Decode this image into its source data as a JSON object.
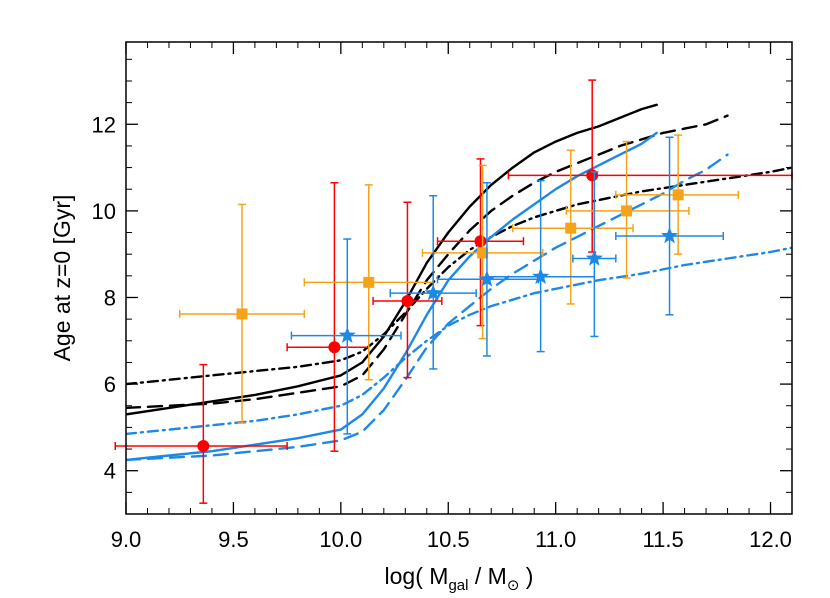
{
  "chart_data": {
    "type": "scatter",
    "xlabel_parts": {
      "pre": "log( M",
      "sub1": "gal",
      "mid": " / M",
      "sub2": "⊙",
      "post": " )"
    },
    "ylabel": "Age at z=0  [Gyr]",
    "xlim": [
      9.0,
      12.1
    ],
    "ylim": [
      3.0,
      13.9
    ],
    "x_ticks": [
      9.0,
      9.5,
      10.0,
      10.5,
      11.0,
      11.5,
      12.0
    ],
    "x_tick_labels": [
      "9.0",
      "9.5",
      "10.0",
      "10.5",
      "11.0",
      "11.5",
      "12.0"
    ],
    "y_ticks": [
      4,
      6,
      8,
      10,
      12
    ],
    "y_tick_labels": [
      "4",
      "6",
      "8",
      "10",
      "12"
    ],
    "grid": false,
    "curves": [
      {
        "color": "#000000",
        "dash": "solid",
        "x": [
          9.0,
          9.2,
          9.4,
          9.6,
          9.8,
          10.0,
          10.1,
          10.2,
          10.3,
          10.4,
          10.5,
          10.6,
          10.7,
          10.8,
          10.9,
          11.0,
          11.1,
          11.2,
          11.3,
          11.4,
          11.47
        ],
        "y": [
          5.3,
          5.45,
          5.6,
          5.75,
          5.95,
          6.2,
          6.5,
          7.1,
          7.9,
          8.8,
          9.5,
          10.1,
          10.6,
          11.0,
          11.35,
          11.6,
          11.8,
          11.95,
          12.15,
          12.35,
          12.45
        ]
      },
      {
        "color": "#000000",
        "dash": "long-dash",
        "x": [
          9.0,
          9.2,
          9.4,
          9.6,
          9.8,
          10.0,
          10.1,
          10.2,
          10.3,
          10.4,
          10.5,
          10.6,
          10.7,
          10.8,
          10.9,
          11.0,
          11.1,
          11.2,
          11.3,
          11.4,
          11.5,
          11.6,
          11.7,
          11.8
        ],
        "y": [
          5.45,
          5.5,
          5.55,
          5.65,
          5.8,
          5.95,
          6.2,
          6.8,
          7.6,
          8.4,
          9.0,
          9.55,
          10.0,
          10.35,
          10.65,
          10.9,
          11.1,
          11.3,
          11.5,
          11.65,
          11.8,
          11.9,
          12.0,
          12.2
        ]
      },
      {
        "color": "#000000",
        "dash": "dash-dot",
        "x": [
          9.0,
          9.2,
          9.4,
          9.6,
          9.8,
          10.0,
          10.1,
          10.2,
          10.3,
          10.4,
          10.5,
          10.6,
          10.7,
          10.8,
          10.9,
          11.0,
          11.1,
          11.2,
          11.4,
          11.6,
          11.8,
          12.0,
          12.1
        ],
        "y": [
          6.0,
          6.1,
          6.2,
          6.3,
          6.4,
          6.55,
          6.75,
          7.15,
          7.65,
          8.2,
          8.7,
          9.1,
          9.4,
          9.65,
          9.85,
          10.0,
          10.15,
          10.25,
          10.45,
          10.6,
          10.75,
          10.9,
          11.0
        ]
      },
      {
        "color": "#1e88e5",
        "dash": "solid",
        "x": [
          9.0,
          9.2,
          9.4,
          9.6,
          9.8,
          10.0,
          10.1,
          10.2,
          10.3,
          10.4,
          10.5,
          10.6,
          10.7,
          10.8,
          10.9,
          11.0,
          11.1,
          11.2,
          11.3,
          11.4,
          11.47
        ],
        "y": [
          4.25,
          4.35,
          4.45,
          4.6,
          4.75,
          4.95,
          5.3,
          5.9,
          6.7,
          7.6,
          8.4,
          8.95,
          9.4,
          9.8,
          10.15,
          10.5,
          10.8,
          11.05,
          11.3,
          11.55,
          11.8
        ]
      },
      {
        "color": "#1e88e5",
        "dash": "long-dash",
        "x": [
          9.0,
          9.2,
          9.4,
          9.6,
          9.8,
          10.0,
          10.1,
          10.2,
          10.3,
          10.4,
          10.5,
          10.6,
          10.7,
          10.8,
          10.9,
          11.0,
          11.1,
          11.2,
          11.3,
          11.4,
          11.5,
          11.6,
          11.7,
          11.8
        ],
        "y": [
          4.25,
          4.3,
          4.35,
          4.45,
          4.55,
          4.7,
          4.9,
          5.4,
          6.1,
          6.85,
          7.4,
          7.8,
          8.2,
          8.55,
          8.85,
          9.15,
          9.4,
          9.65,
          9.9,
          10.15,
          10.4,
          10.7,
          10.95,
          11.3
        ]
      },
      {
        "color": "#1e88e5",
        "dash": "dash-dot",
        "x": [
          9.0,
          9.2,
          9.4,
          9.6,
          9.8,
          10.0,
          10.1,
          10.2,
          10.3,
          10.4,
          10.5,
          10.6,
          10.7,
          10.8,
          10.9,
          11.0,
          11.2,
          11.4,
          11.6,
          11.8,
          12.0,
          12.1
        ],
        "y": [
          4.85,
          4.95,
          5.05,
          5.15,
          5.3,
          5.5,
          5.75,
          6.15,
          6.6,
          7.0,
          7.35,
          7.6,
          7.8,
          7.95,
          8.1,
          8.2,
          8.4,
          8.55,
          8.75,
          8.9,
          9.05,
          9.15
        ]
      }
    ],
    "point_series": [
      {
        "color": "#ff0000",
        "marker": "circle",
        "points": [
          {
            "x": 9.36,
            "y": 4.57,
            "xlo": 8.95,
            "xhi": 9.75,
            "ylo": 3.25,
            "yhi": 6.45
          },
          {
            "x": 9.97,
            "y": 6.85,
            "xlo": 9.75,
            "xhi": 10.13,
            "ylo": 4.45,
            "yhi": 10.65
          },
          {
            "x": 10.31,
            "y": 7.92,
            "xlo": 10.15,
            "xhi": 10.47,
            "ylo": 6.15,
            "yhi": 10.2
          },
          {
            "x": 10.65,
            "y": 9.3,
            "xlo": 10.45,
            "xhi": 10.85,
            "ylo": 7.35,
            "yhi": 11.2
          },
          {
            "x": 11.17,
            "y": 10.82,
            "xlo": 10.78,
            "xhi": 12.1,
            "ylo": 9.05,
            "yhi": 13.02
          }
        ]
      },
      {
        "color": "#f5a31a",
        "marker": "square",
        "points": [
          {
            "x": 9.54,
            "y": 7.62,
            "xlo": 9.25,
            "xhi": 9.83,
            "ylo": 5.1,
            "yhi": 10.15
          },
          {
            "x": 10.13,
            "y": 8.35,
            "xlo": 9.83,
            "xhi": 10.43,
            "ylo": 6.1,
            "yhi": 10.6
          },
          {
            "x": 10.66,
            "y": 9.03,
            "xlo": 10.38,
            "xhi": 10.94,
            "ylo": 7.05,
            "yhi": 11.05
          },
          {
            "x": 11.07,
            "y": 9.6,
            "xlo": 10.8,
            "xhi": 11.36,
            "ylo": 7.85,
            "yhi": 11.4
          },
          {
            "x": 11.33,
            "y": 10.0,
            "xlo": 11.05,
            "xhi": 11.62,
            "ylo": 8.45,
            "yhi": 11.6
          },
          {
            "x": 11.57,
            "y": 10.37,
            "xlo": 11.28,
            "xhi": 11.85,
            "ylo": 9.0,
            "yhi": 11.75
          }
        ]
      },
      {
        "color": "#1e88e5",
        "marker": "star",
        "points": [
          {
            "x": 10.03,
            "y": 7.12,
            "xlo": 9.77,
            "xhi": 10.28,
            "ylo": 4.85,
            "yhi": 9.35
          },
          {
            "x": 10.43,
            "y": 8.1,
            "xlo": 10.23,
            "xhi": 10.63,
            "ylo": 6.35,
            "yhi": 10.35
          },
          {
            "x": 10.68,
            "y": 8.42,
            "xlo": 10.45,
            "xhi": 10.92,
            "ylo": 6.65,
            "yhi": 10.65
          },
          {
            "x": 10.93,
            "y": 8.48,
            "xlo": 10.68,
            "xhi": 11.18,
            "ylo": 6.75,
            "yhi": 10.7
          },
          {
            "x": 11.18,
            "y": 8.9,
            "xlo": 11.08,
            "xhi": 11.28,
            "ylo": 7.1,
            "yhi": 10.9
          },
          {
            "x": 11.53,
            "y": 9.42,
            "xlo": 11.28,
            "xhi": 11.78,
            "ylo": 7.6,
            "yhi": 11.7
          }
        ]
      }
    ]
  }
}
